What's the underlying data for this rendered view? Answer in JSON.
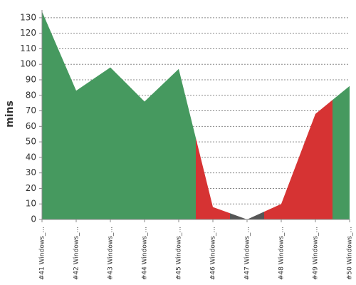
{
  "chart_data": {
    "type": "area",
    "y_label": "mins",
    "categories": [
      "#41 Windows_...",
      "#42 Windows_...",
      "#43 Windows_...",
      "#44 Windows_...",
      "#45 Windows_...",
      "#46 Windows_...",
      "#47 Windows_...",
      "#48 Windows_...",
      "#49 Windows_...",
      "#50 Windows_..."
    ],
    "values": [
      134,
      83,
      98,
      76,
      97,
      8,
      0,
      10,
      68,
      86
    ],
    "colors": [
      "#46995f",
      "#46995f",
      "#46995f",
      "#46995f",
      "#46995f",
      "#d63333",
      "#555555",
      "#d63333",
      "#d63333",
      "#46995f"
    ],
    "ylim": [
      0,
      135
    ],
    "yticks": [
      0,
      10,
      20,
      30,
      40,
      50,
      60,
      70,
      80,
      90,
      100,
      110,
      120,
      130
    ],
    "grid": true
  }
}
